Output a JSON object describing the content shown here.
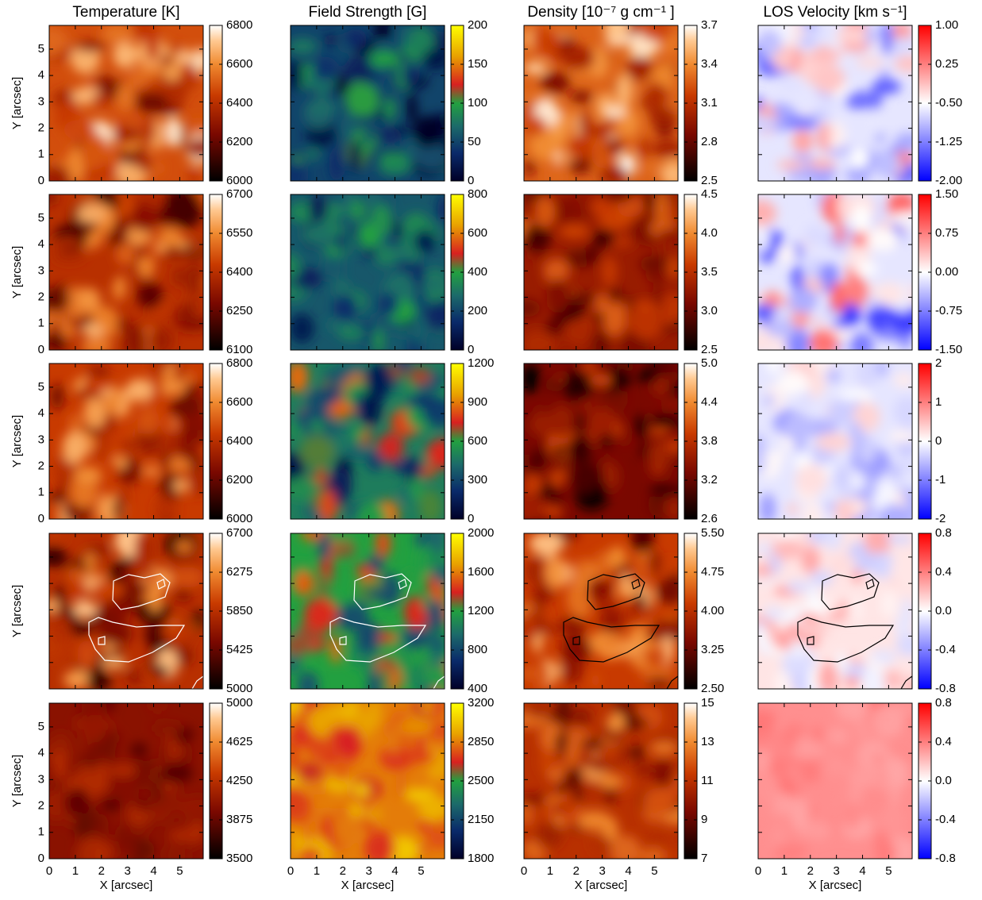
{
  "chart_data": [
    {
      "type": "heatmap",
      "title": "Temperature [K]",
      "ylabel": "Y [arcsec]",
      "colormap": "hot",
      "xlim": [
        0,
        5.9
      ],
      "xticks": [
        0,
        1,
        2,
        3,
        4,
        5
      ],
      "ylim": [
        0,
        5.9
      ],
      "yticks": [
        0,
        1,
        2,
        3,
        4,
        5
      ],
      "show_xticklabels": false,
      "show_yticklabels": true,
      "colorbar": {
        "lim": [
          6000,
          6800
        ],
        "ticks": [
          6000,
          6200,
          6400,
          6600,
          6800
        ]
      }
    },
    {
      "type": "heatmap",
      "title": "Field Strength [G]",
      "colormap": "field",
      "xlim": [
        0,
        5.9
      ],
      "xticks": [
        0,
        1,
        2,
        3,
        4,
        5
      ],
      "ylim": [
        0,
        5.9
      ],
      "yticks": [
        0,
        1,
        2,
        3,
        4,
        5
      ],
      "show_xticklabels": false,
      "show_yticklabels": false,
      "colorbar": {
        "lim": [
          0,
          200
        ],
        "ticks": [
          0,
          50,
          100,
          150,
          200
        ]
      }
    },
    {
      "type": "heatmap",
      "title": "Density [10⁻⁷ g cm⁻¹ ]",
      "colormap": "hot",
      "xlim": [
        0,
        5.9
      ],
      "xticks": [
        0,
        1,
        2,
        3,
        4,
        5
      ],
      "ylim": [
        0,
        5.9
      ],
      "yticks": [
        0,
        1,
        2,
        3,
        4,
        5
      ],
      "show_xticklabels": false,
      "show_yticklabels": false,
      "colorbar": {
        "lim": [
          2.5,
          3.7
        ],
        "ticks": [
          2.5,
          2.8,
          3.1,
          3.4,
          3.7
        ]
      }
    },
    {
      "type": "heatmap",
      "title": "LOS Velocity [km s⁻¹]",
      "colormap": "bwr",
      "xlim": [
        0,
        5.9
      ],
      "xticks": [
        0,
        1,
        2,
        3,
        4,
        5
      ],
      "ylim": [
        0,
        5.9
      ],
      "yticks": [
        0,
        1,
        2,
        3,
        4,
        5
      ],
      "show_xticklabels": false,
      "show_yticklabels": false,
      "colorbar": {
        "lim": [
          -2,
          1
        ],
        "ticks": [
          {
            "value": -2,
            "label": "-2.00"
          },
          -1.25,
          {
            "value": -0.5,
            "label": "-0.50"
          },
          0.25,
          {
            "value": 1,
            "label": "1.00"
          }
        ]
      }
    },
    {
      "type": "heatmap",
      "ylabel": "Y [arcsec]",
      "colormap": "hot",
      "xlim": [
        0,
        5.9
      ],
      "xticks": [
        0,
        1,
        2,
        3,
        4,
        5
      ],
      "ylim": [
        0,
        5.9
      ],
      "yticks": [
        0,
        1,
        2,
        3,
        4,
        5
      ],
      "show_xticklabels": false,
      "show_yticklabels": true,
      "colorbar": {
        "lim": [
          6100,
          6700
        ],
        "ticks": [
          6100,
          6250,
          6400,
          6550,
          6700
        ]
      }
    },
    {
      "type": "heatmap",
      "colormap": "field",
      "xlim": [
        0,
        5.9
      ],
      "xticks": [
        0,
        1,
        2,
        3,
        4,
        5
      ],
      "ylim": [
        0,
        5.9
      ],
      "yticks": [
        0,
        1,
        2,
        3,
        4,
        5
      ],
      "show_xticklabels": false,
      "show_yticklabels": false,
      "colorbar": {
        "lim": [
          0,
          800
        ],
        "ticks": [
          0,
          200,
          400,
          600,
          800
        ]
      }
    },
    {
      "type": "heatmap",
      "colormap": "hot",
      "xlim": [
        0,
        5.9
      ],
      "xticks": [
        0,
        1,
        2,
        3,
        4,
        5
      ],
      "ylim": [
        0,
        5.9
      ],
      "yticks": [
        0,
        1,
        2,
        3,
        4,
        5
      ],
      "show_xticklabels": false,
      "show_yticklabels": false,
      "colorbar": {
        "lim": [
          2.5,
          4.5
        ],
        "ticks": [
          2.5,
          {
            "value": 3,
            "label": "3.0"
          },
          3.5,
          {
            "value": 4,
            "label": "4.0"
          },
          4.5
        ]
      }
    },
    {
      "type": "heatmap",
      "colormap": "bwr",
      "xlim": [
        0,
        5.9
      ],
      "xticks": [
        0,
        1,
        2,
        3,
        4,
        5
      ],
      "ylim": [
        0,
        5.9
      ],
      "yticks": [
        0,
        1,
        2,
        3,
        4,
        5
      ],
      "show_xticklabels": false,
      "show_yticklabels": false,
      "colorbar": {
        "lim": [
          -1.5,
          1.5
        ],
        "ticks": [
          {
            "value": -1.5,
            "label": "-1.50"
          },
          -0.75,
          {
            "value": 0,
            "label": "0.00"
          },
          0.75,
          {
            "value": 1.5,
            "label": "1.50"
          }
        ]
      }
    },
    {
      "type": "heatmap",
      "ylabel": "Y [arcsec]",
      "colormap": "hot",
      "xlim": [
        0,
        5.9
      ],
      "xticks": [
        0,
        1,
        2,
        3,
        4,
        5
      ],
      "ylim": [
        0,
        5.9
      ],
      "yticks": [
        0,
        1,
        2,
        3,
        4,
        5
      ],
      "show_xticklabels": false,
      "show_yticklabels": true,
      "colorbar": {
        "lim": [
          6000,
          6800
        ],
        "ticks": [
          6000,
          6200,
          6400,
          6600,
          6800
        ]
      }
    },
    {
      "type": "heatmap",
      "colormap": "field",
      "xlim": [
        0,
        5.9
      ],
      "xticks": [
        0,
        1,
        2,
        3,
        4,
        5
      ],
      "ylim": [
        0,
        5.9
      ],
      "yticks": [
        0,
        1,
        2,
        3,
        4,
        5
      ],
      "show_xticklabels": false,
      "show_yticklabels": false,
      "colorbar": {
        "lim": [
          0,
          1200
        ],
        "ticks": [
          0,
          300,
          600,
          900,
          1200
        ]
      }
    },
    {
      "type": "heatmap",
      "colormap": "hot",
      "xlim": [
        0,
        5.9
      ],
      "xticks": [
        0,
        1,
        2,
        3,
        4,
        5
      ],
      "ylim": [
        0,
        5.9
      ],
      "yticks": [
        0,
        1,
        2,
        3,
        4,
        5
      ],
      "show_xticklabels": false,
      "show_yticklabels": false,
      "colorbar": {
        "lim": [
          2.6,
          5
        ],
        "ticks": [
          2.6,
          3.2,
          3.8,
          4.4,
          {
            "value": 5,
            "label": "5.0"
          }
        ]
      }
    },
    {
      "type": "heatmap",
      "colormap": "bwr",
      "xlim": [
        0,
        5.9
      ],
      "xticks": [
        0,
        1,
        2,
        3,
        4,
        5
      ],
      "ylim": [
        0,
        5.9
      ],
      "yticks": [
        0,
        1,
        2,
        3,
        4,
        5
      ],
      "show_xticklabels": false,
      "show_yticklabels": false,
      "colorbar": {
        "lim": [
          -2,
          2
        ],
        "ticks": [
          -2,
          -1,
          0,
          1,
          2
        ]
      }
    },
    {
      "type": "heatmap",
      "ylabel": "Y [arcsec]",
      "colormap": "hot",
      "contour_color": "#ffffff",
      "xlim": [
        0,
        5.9
      ],
      "xticks": [
        0,
        1,
        2,
        3,
        4,
        5
      ],
      "ylim": [
        0,
        5.9
      ],
      "yticks": [
        0,
        1,
        2,
        3,
        4,
        5
      ],
      "show_xticklabels": false,
      "show_yticklabels": false,
      "colorbar": {
        "lim": [
          5000,
          6700
        ],
        "ticks": [
          5000,
          5425,
          5850,
          6275,
          6700
        ]
      }
    },
    {
      "type": "heatmap",
      "colormap": "field",
      "contour_color": "#ffffff",
      "xlim": [
        0,
        5.9
      ],
      "xticks": [
        0,
        1,
        2,
        3,
        4,
        5
      ],
      "ylim": [
        0,
        5.9
      ],
      "yticks": [
        0,
        1,
        2,
        3,
        4,
        5
      ],
      "show_xticklabels": false,
      "show_yticklabels": false,
      "colorbar": {
        "lim": [
          400,
          2000
        ],
        "ticks": [
          400,
          800,
          1200,
          1600,
          2000
        ]
      }
    },
    {
      "type": "heatmap",
      "colormap": "hot",
      "contour_color": "#000000",
      "xlim": [
        0,
        5.9
      ],
      "xticks": [
        0,
        1,
        2,
        3,
        4,
        5
      ],
      "ylim": [
        0,
        5.9
      ],
      "yticks": [
        0,
        1,
        2,
        3,
        4,
        5
      ],
      "show_xticklabels": false,
      "show_yticklabels": false,
      "colorbar": {
        "lim": [
          2.5,
          5.5
        ],
        "ticks": [
          {
            "value": 2.5,
            "label": "2.50"
          },
          3.25,
          {
            "value": 4,
            "label": "4.00"
          },
          4.75,
          {
            "value": 5.5,
            "label": "5.50"
          }
        ]
      }
    },
    {
      "type": "heatmap",
      "colormap": "bwr",
      "contour_color": "#000000",
      "xlim": [
        0,
        5.9
      ],
      "xticks": [
        0,
        1,
        2,
        3,
        4,
        5
      ],
      "ylim": [
        0,
        5.9
      ],
      "yticks": [
        0,
        1,
        2,
        3,
        4,
        5
      ],
      "show_xticklabels": false,
      "show_yticklabels": false,
      "colorbar": {
        "lim": [
          -0.8,
          0.8
        ],
        "ticks": [
          -0.8,
          -0.4,
          {
            "value": 0,
            "label": "0.0"
          },
          0.4,
          0.8
        ]
      }
    },
    {
      "type": "heatmap",
      "xlabel": "X [arcsec]",
      "ylabel": "Y [arcsec]",
      "colormap": "hot",
      "xlim": [
        0,
        5.9
      ],
      "xticks": [
        0,
        1,
        2,
        3,
        4,
        5
      ],
      "ylim": [
        0,
        5.9
      ],
      "yticks": [
        0,
        1,
        2,
        3,
        4,
        5
      ],
      "show_xticklabels": true,
      "show_yticklabels": true,
      "colorbar": {
        "lim": [
          3500,
          5000
        ],
        "ticks": [
          3500,
          3875,
          4250,
          4625,
          5000
        ]
      }
    },
    {
      "type": "heatmap",
      "xlabel": "X [arcsec]",
      "colormap": "field",
      "xlim": [
        0,
        5.9
      ],
      "xticks": [
        0,
        1,
        2,
        3,
        4,
        5
      ],
      "ylim": [
        0,
        5.9
      ],
      "yticks": [
        0,
        1,
        2,
        3,
        4,
        5
      ],
      "show_xticklabels": true,
      "show_yticklabels": false,
      "colorbar": {
        "lim": [
          1800,
          3200
        ],
        "ticks": [
          1800,
          2150,
          2500,
          2850,
          3200
        ]
      }
    },
    {
      "type": "heatmap",
      "xlabel": "X [arcsec]",
      "colormap": "hot",
      "xlim": [
        0,
        5.9
      ],
      "xticks": [
        0,
        1,
        2,
        3,
        4,
        5
      ],
      "ylim": [
        0,
        5.9
      ],
      "yticks": [
        0,
        1,
        2,
        3,
        4,
        5
      ],
      "show_xticklabels": true,
      "show_yticklabels": false,
      "colorbar": {
        "lim": [
          7,
          15
        ],
        "ticks": [
          7,
          9,
          11,
          13,
          15
        ]
      }
    },
    {
      "type": "heatmap",
      "xlabel": "X [arcsec]",
      "colormap": "bwr",
      "xlim": [
        0,
        5.9
      ],
      "xticks": [
        0,
        1,
        2,
        3,
        4,
        5
      ],
      "ylim": [
        0,
        5.9
      ],
      "yticks": [
        0,
        1,
        2,
        3,
        4,
        5
      ],
      "show_xticklabels": true,
      "show_yticklabels": false,
      "colorbar": {
        "lim": [
          -0.8,
          0.8
        ],
        "ticks": [
          -0.8,
          -0.4,
          {
            "value": 0,
            "label": "0.0"
          },
          0.4,
          0.8
        ]
      }
    }
  ]
}
